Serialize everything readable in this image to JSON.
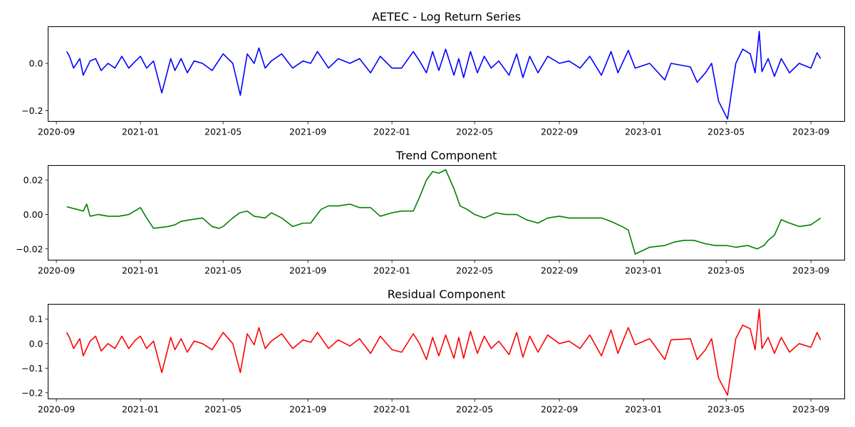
{
  "chart_data": [
    {
      "type": "line",
      "title": "AETEC - Log Return Series",
      "color": "#0000ff",
      "xlim": [
        "2020-08-20",
        "2023-10-20"
      ],
      "ylim": [
        -0.245,
        0.155
      ],
      "y_ticks": [
        0.0,
        -0.2
      ],
      "y_tick_labels": [
        "0.0",
        "−0.2"
      ],
      "x_ticks": [
        "2020-09-01",
        "2021-01-01",
        "2021-05-01",
        "2021-09-01",
        "2022-01-01",
        "2022-05-01",
        "2022-09-01",
        "2023-01-01",
        "2023-05-01",
        "2023-09-01"
      ],
      "x_tick_labels": [
        "2020-09",
        "2021-01",
        "2021-05",
        "2021-09",
        "2022-01",
        "2022-05",
        "2022-09",
        "2023-01",
        "2023-05",
        "2023-09"
      ],
      "x": [
        "2020-09-16",
        "2020-09-20",
        "2020-09-26",
        "2020-10-05",
        "2020-10-10",
        "2020-10-20",
        "2020-10-28",
        "2020-11-05",
        "2020-11-15",
        "2020-11-25",
        "2020-12-05",
        "2020-12-15",
        "2020-12-25",
        "2021-01-01",
        "2021-01-10",
        "2021-01-20",
        "2021-02-01",
        "2021-02-14",
        "2021-02-20",
        "2021-03-01",
        "2021-03-10",
        "2021-03-20",
        "2021-04-01",
        "2021-04-15",
        "2021-05-01",
        "2021-05-15",
        "2021-05-26",
        "2021-06-05",
        "2021-06-15",
        "2021-06-22",
        "2021-07-01",
        "2021-07-10",
        "2021-07-25",
        "2021-08-10",
        "2021-08-25",
        "2021-09-05",
        "2021-09-15",
        "2021-10-01",
        "2021-10-15",
        "2021-11-01",
        "2021-11-15",
        "2021-12-01",
        "2021-12-15",
        "2022-01-01",
        "2022-01-15",
        "2022-02-01",
        "2022-02-10",
        "2022-02-20",
        "2022-03-01",
        "2022-03-10",
        "2022-03-20",
        "2022-04-01",
        "2022-04-08",
        "2022-04-15",
        "2022-04-25",
        "2022-05-05",
        "2022-05-15",
        "2022-05-25",
        "2022-06-05",
        "2022-06-20",
        "2022-07-01",
        "2022-07-10",
        "2022-07-20",
        "2022-08-01",
        "2022-08-15",
        "2022-09-01",
        "2022-09-15",
        "2022-10-01",
        "2022-10-15",
        "2022-11-01",
        "2022-11-15",
        "2022-11-25",
        "2022-12-10",
        "2022-12-20",
        "2023-01-10",
        "2023-02-01",
        "2023-02-10",
        "2023-03-10",
        "2023-03-20",
        "2023-04-01",
        "2023-04-10",
        "2023-04-20",
        "2023-05-03",
        "2023-05-15",
        "2023-05-25",
        "2023-06-05",
        "2023-06-12",
        "2023-06-18",
        "2023-06-22",
        "2023-07-01",
        "2023-07-10",
        "2023-07-20",
        "2023-08-01",
        "2023-08-15",
        "2023-09-01",
        "2023-09-10",
        "2023-09-15"
      ],
      "values": [
        0.05,
        0.03,
        -0.02,
        0.02,
        -0.05,
        0.01,
        0.02,
        -0.03,
        0.0,
        -0.02,
        0.03,
        -0.02,
        0.01,
        0.03,
        -0.02,
        0.01,
        -0.125,
        0.02,
        -0.03,
        0.02,
        -0.04,
        0.01,
        0.0,
        -0.03,
        0.04,
        0.0,
        -0.135,
        0.04,
        0.0,
        0.065,
        -0.02,
        0.01,
        0.04,
        -0.02,
        0.01,
        0.0,
        0.05,
        -0.02,
        0.02,
        0.0,
        0.02,
        -0.04,
        0.03,
        -0.02,
        -0.02,
        0.05,
        0.01,
        -0.04,
        0.05,
        -0.03,
        0.06,
        -0.05,
        0.02,
        -0.06,
        0.05,
        -0.04,
        0.03,
        -0.02,
        0.01,
        -0.05,
        0.04,
        -0.06,
        0.03,
        -0.04,
        0.03,
        0.0,
        0.01,
        -0.02,
        0.03,
        -0.05,
        0.05,
        -0.04,
        0.055,
        -0.02,
        0.0,
        -0.07,
        0.0,
        -0.015,
        -0.08,
        -0.04,
        0.0,
        -0.16,
        -0.235,
        0.0,
        0.06,
        0.04,
        -0.04,
        0.135,
        -0.035,
        0.02,
        -0.055,
        0.02,
        -0.04,
        0.0,
        -0.02,
        0.045,
        0.02
      ]
    },
    {
      "type": "line",
      "title": "Trend Component",
      "color": "#008000",
      "xlim": [
        "2020-08-20",
        "2023-10-20"
      ],
      "ylim": [
        -0.0265,
        0.0285
      ],
      "y_ticks": [
        0.02,
        0.0,
        -0.02
      ],
      "y_tick_labels": [
        "0.02",
        "0.00",
        "−0.02"
      ],
      "x_ticks": [
        "2020-09-01",
        "2021-01-01",
        "2021-05-01",
        "2021-09-01",
        "2022-01-01",
        "2022-05-01",
        "2022-09-01",
        "2023-01-01",
        "2023-05-01",
        "2023-09-01"
      ],
      "x_tick_labels": [
        "2020-09",
        "2021-01",
        "2021-05",
        "2021-09",
        "2022-01",
        "2022-05",
        "2022-09",
        "2023-01",
        "2023-05",
        "2023-09"
      ],
      "x": [
        "2020-09-16",
        "2020-10-01",
        "2020-10-10",
        "2020-10-15",
        "2020-10-20",
        "2020-11-01",
        "2020-11-15",
        "2020-12-01",
        "2020-12-15",
        "2021-01-01",
        "2021-01-10",
        "2021-01-20",
        "2021-02-10",
        "2021-02-20",
        "2021-03-01",
        "2021-03-15",
        "2021-04-01",
        "2021-04-15",
        "2021-04-25",
        "2021-05-01",
        "2021-05-15",
        "2021-05-25",
        "2021-06-05",
        "2021-06-15",
        "2021-07-01",
        "2021-07-10",
        "2021-07-25",
        "2021-08-10",
        "2021-08-25",
        "2021-09-05",
        "2021-09-20",
        "2021-10-01",
        "2021-10-15",
        "2021-11-01",
        "2021-11-15",
        "2021-12-01",
        "2021-12-15",
        "2022-01-01",
        "2022-01-15",
        "2022-02-01",
        "2022-02-10",
        "2022-02-20",
        "2022-03-01",
        "2022-03-10",
        "2022-03-20",
        "2022-04-01",
        "2022-04-10",
        "2022-04-20",
        "2022-05-01",
        "2022-05-15",
        "2022-06-01",
        "2022-06-15",
        "2022-07-01",
        "2022-07-15",
        "2022-08-01",
        "2022-08-15",
        "2022-09-01",
        "2022-09-15",
        "2022-10-01",
        "2022-10-15",
        "2022-11-01",
        "2022-11-15",
        "2022-12-01",
        "2022-12-10",
        "2022-12-20",
        "2023-01-10",
        "2023-02-01",
        "2023-02-15",
        "2023-03-01",
        "2023-03-15",
        "2023-04-01",
        "2023-04-15",
        "2023-05-01",
        "2023-05-15",
        "2023-06-01",
        "2023-06-15",
        "2023-06-25",
        "2023-07-01",
        "2023-07-10",
        "2023-07-20",
        "2023-08-01",
        "2023-08-15",
        "2023-09-01",
        "2023-09-15"
      ],
      "values": [
        0.0045,
        0.003,
        0.002,
        0.006,
        -0.001,
        0.0,
        -0.001,
        -0.001,
        0.0,
        0.004,
        -0.002,
        -0.008,
        -0.007,
        -0.006,
        -0.004,
        -0.003,
        -0.002,
        -0.007,
        -0.008,
        -0.007,
        -0.002,
        0.001,
        0.002,
        -0.001,
        -0.002,
        0.001,
        -0.002,
        -0.007,
        -0.005,
        -0.005,
        0.003,
        0.005,
        0.005,
        0.006,
        0.004,
        0.004,
        -0.001,
        0.001,
        0.002,
        0.002,
        0.01,
        0.02,
        0.025,
        0.024,
        0.026,
        0.015,
        0.005,
        0.003,
        0.0,
        -0.002,
        0.001,
        0.0,
        0.0,
        -0.003,
        -0.005,
        -0.002,
        -0.001,
        -0.002,
        -0.002,
        -0.002,
        -0.002,
        -0.004,
        -0.007,
        -0.009,
        -0.023,
        -0.019,
        -0.018,
        -0.016,
        -0.015,
        -0.015,
        -0.017,
        -0.018,
        -0.018,
        -0.019,
        -0.018,
        -0.02,
        -0.018,
        -0.015,
        -0.012,
        -0.003,
        -0.005,
        -0.007,
        -0.006,
        -0.002
      ]
    },
    {
      "type": "line",
      "title": "Residual Component",
      "color": "#ff0000",
      "xlim": [
        "2020-08-20",
        "2023-10-20"
      ],
      "ylim": [
        -0.225,
        0.16
      ],
      "y_ticks": [
        0.1,
        0.0,
        -0.1,
        -0.2
      ],
      "y_tick_labels": [
        "0.1",
        "0.0",
        "−0.1",
        "−0.2"
      ],
      "x_ticks": [
        "2020-09-01",
        "2021-01-01",
        "2021-05-01",
        "2021-09-01",
        "2022-01-01",
        "2022-05-01",
        "2022-09-01",
        "2023-01-01",
        "2023-05-01",
        "2023-09-01"
      ],
      "x_tick_labels": [
        "2020-09",
        "2021-01",
        "2021-05",
        "2021-09",
        "2022-01",
        "2022-05",
        "2022-09",
        "2023-01",
        "2023-05",
        "2023-09"
      ],
      "x": [
        "2020-09-16",
        "2020-09-20",
        "2020-09-26",
        "2020-10-05",
        "2020-10-10",
        "2020-10-20",
        "2020-10-28",
        "2020-11-05",
        "2020-11-15",
        "2020-11-25",
        "2020-12-05",
        "2020-12-15",
        "2020-12-25",
        "2021-01-01",
        "2021-01-10",
        "2021-01-20",
        "2021-02-01",
        "2021-02-14",
        "2021-02-20",
        "2021-03-01",
        "2021-03-10",
        "2021-03-20",
        "2021-04-01",
        "2021-04-15",
        "2021-05-01",
        "2021-05-15",
        "2021-05-26",
        "2021-06-05",
        "2021-06-15",
        "2021-06-22",
        "2021-07-01",
        "2021-07-10",
        "2021-07-25",
        "2021-08-10",
        "2021-08-25",
        "2021-09-05",
        "2021-09-15",
        "2021-10-01",
        "2021-10-15",
        "2021-11-01",
        "2021-11-15",
        "2021-12-01",
        "2021-12-15",
        "2022-01-01",
        "2022-01-15",
        "2022-02-01",
        "2022-02-10",
        "2022-02-20",
        "2022-03-01",
        "2022-03-10",
        "2022-03-20",
        "2022-04-01",
        "2022-04-08",
        "2022-04-15",
        "2022-04-25",
        "2022-05-05",
        "2022-05-15",
        "2022-05-25",
        "2022-06-05",
        "2022-06-20",
        "2022-07-01",
        "2022-07-10",
        "2022-07-20",
        "2022-08-01",
        "2022-08-15",
        "2022-09-01",
        "2022-09-15",
        "2022-10-01",
        "2022-10-15",
        "2022-11-01",
        "2022-11-15",
        "2022-11-25",
        "2022-12-10",
        "2022-12-20",
        "2023-01-10",
        "2023-02-01",
        "2023-02-10",
        "2023-03-10",
        "2023-03-20",
        "2023-04-01",
        "2023-04-10",
        "2023-04-20",
        "2023-05-03",
        "2023-05-15",
        "2023-05-25",
        "2023-06-05",
        "2023-06-12",
        "2023-06-18",
        "2023-06-22",
        "2023-07-01",
        "2023-07-10",
        "2023-07-20",
        "2023-08-01",
        "2023-08-15",
        "2023-09-01",
        "2023-09-10",
        "2023-09-15"
      ],
      "values": [
        0.045,
        0.025,
        -0.02,
        0.02,
        -0.05,
        0.01,
        0.03,
        -0.03,
        0.0,
        -0.02,
        0.03,
        -0.02,
        0.015,
        0.03,
        -0.02,
        0.01,
        -0.118,
        0.025,
        -0.025,
        0.02,
        -0.035,
        0.01,
        0.0,
        -0.025,
        0.045,
        0.0,
        -0.118,
        0.04,
        -0.005,
        0.065,
        -0.02,
        0.01,
        0.04,
        -0.02,
        0.015,
        0.005,
        0.045,
        -0.02,
        0.015,
        -0.01,
        0.02,
        -0.04,
        0.03,
        -0.025,
        -0.035,
        0.04,
        0.0,
        -0.065,
        0.025,
        -0.05,
        0.035,
        -0.06,
        0.025,
        -0.06,
        0.05,
        -0.04,
        0.03,
        -0.02,
        0.01,
        -0.045,
        0.045,
        -0.055,
        0.03,
        -0.035,
        0.035,
        0.0,
        0.01,
        -0.02,
        0.035,
        -0.05,
        0.055,
        -0.04,
        0.065,
        -0.005,
        0.02,
        -0.065,
        0.015,
        0.02,
        -0.065,
        -0.025,
        0.02,
        -0.14,
        -0.21,
        0.02,
        0.075,
        0.06,
        -0.025,
        0.14,
        -0.02,
        0.025,
        -0.04,
        0.025,
        -0.035,
        0.0,
        -0.015,
        0.045,
        0.015
      ]
    }
  ]
}
